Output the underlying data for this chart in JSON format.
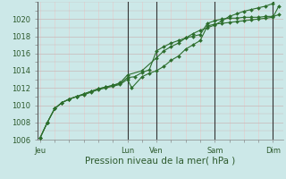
{
  "bg_color": "#cce8e8",
  "grid_color_h": "#c8b8b8",
  "grid_color_v": "#e8c8c8",
  "line_color": "#2d6e2d",
  "marker_color": "#2d6e2d",
  "ylim": [
    1006,
    1022
  ],
  "yticks": [
    1006,
    1008,
    1010,
    1012,
    1014,
    1016,
    1018,
    1020
  ],
  "xlabel": "Pression niveau de la mer( hPa )",
  "xlabel_fontsize": 7.5,
  "tick_fontsize": 6,
  "day_labels": [
    "Jeu",
    "Lun",
    "Ven",
    "Sam",
    "Dim"
  ],
  "day_positions": [
    0,
    3.0,
    4.0,
    6.0,
    8.0
  ],
  "vline_positions": [
    3.0,
    4.0,
    6.0,
    8.0
  ],
  "line1_x": [
    0,
    0.25,
    0.5,
    0.75,
    1.0,
    1.25,
    1.5,
    1.75,
    2.0,
    2.25,
    2.5,
    2.75,
    3.0,
    3.25,
    3.5,
    3.75,
    4.0,
    4.25,
    4.5,
    4.75,
    5.0,
    5.25,
    5.5,
    5.75,
    6.0,
    6.25,
    6.5,
    6.75,
    7.0,
    7.25,
    7.5,
    7.75,
    8.0,
    8.2
  ],
  "line1_y": [
    1006.2,
    1008.0,
    1009.6,
    1010.3,
    1010.7,
    1011.0,
    1011.3,
    1011.6,
    1011.9,
    1012.1,
    1012.3,
    1012.5,
    1013.2,
    1013.3,
    1013.8,
    1014.1,
    1016.3,
    1016.8,
    1017.2,
    1017.5,
    1017.8,
    1018.0,
    1018.2,
    1019.5,
    1019.8,
    1020.0,
    1020.1,
    1020.1,
    1020.2,
    1020.2,
    1020.2,
    1020.3,
    1020.3,
    1020.5
  ],
  "line2_x": [
    0,
    0.25,
    0.5,
    0.75,
    1.0,
    1.25,
    1.5,
    1.75,
    2.0,
    2.25,
    2.5,
    2.75,
    3.0,
    3.15,
    3.5,
    3.75,
    4.0,
    4.25,
    4.5,
    4.75,
    5.0,
    5.25,
    5.5,
    5.75,
    6.0,
    6.25,
    6.5,
    6.75,
    7.0,
    7.25,
    7.5,
    7.75,
    8.0,
    8.2
  ],
  "line2_y": [
    1006.2,
    1008.0,
    1009.6,
    1010.3,
    1010.7,
    1011.0,
    1011.2,
    1011.5,
    1011.8,
    1012.0,
    1012.2,
    1012.4,
    1013.0,
    1012.0,
    1013.3,
    1013.7,
    1014.0,
    1014.5,
    1015.2,
    1015.7,
    1016.5,
    1017.0,
    1017.5,
    1019.2,
    1019.4,
    1019.5,
    1019.6,
    1019.7,
    1019.8,
    1019.9,
    1020.0,
    1020.1,
    1020.2,
    1021.5
  ],
  "line3_x": [
    0,
    0.25,
    0.5,
    0.75,
    1.0,
    1.25,
    1.5,
    1.75,
    2.0,
    2.25,
    2.5,
    2.75,
    3.0,
    3.5,
    4.0,
    4.25,
    4.5,
    4.75,
    5.0,
    5.25,
    5.5,
    5.75,
    6.0,
    6.25,
    6.5,
    6.75,
    7.0,
    7.25,
    7.5,
    7.75,
    8.0,
    8.2
  ],
  "line3_y": [
    1006.2,
    1008.0,
    1009.6,
    1010.3,
    1010.7,
    1011.0,
    1011.3,
    1011.6,
    1011.9,
    1012.1,
    1012.3,
    1012.6,
    1013.5,
    1014.0,
    1015.5,
    1016.3,
    1016.8,
    1017.2,
    1017.8,
    1018.3,
    1018.7,
    1019.0,
    1019.3,
    1019.8,
    1020.3,
    1020.6,
    1020.9,
    1021.1,
    1021.3,
    1021.5,
    1021.8,
    1022.8
  ]
}
